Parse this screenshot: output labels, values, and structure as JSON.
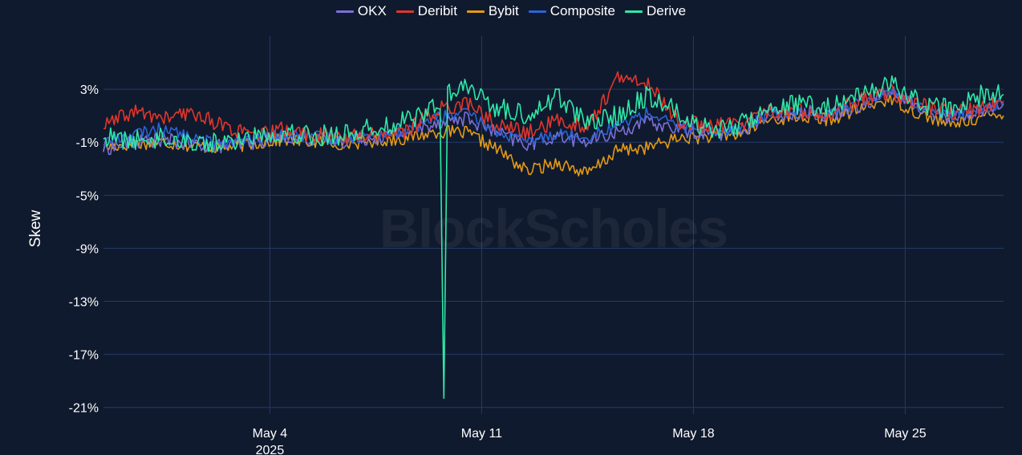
{
  "chart_data": {
    "type": "line",
    "ylabel": "Skew",
    "ylim": [
      -21.5,
      7
    ],
    "y_ticks": [
      "3%",
      "-1%",
      "-5%",
      "-9%",
      "-13%",
      "-17%",
      "-21%"
    ],
    "y_tick_values": [
      3,
      -1,
      -5,
      -9,
      -13,
      -17,
      -21
    ],
    "x_range": [
      "2025-04-28T12:00",
      "2025-05-28T06:00"
    ],
    "x_ticks": [
      {
        "date": "2025-05-04",
        "label": "May 4",
        "sublabel": "2025"
      },
      {
        "date": "2025-05-11",
        "label": "May 11",
        "sublabel": ""
      },
      {
        "date": "2025-05-18",
        "label": "May 18",
        "sublabel": ""
      },
      {
        "date": "2025-05-25",
        "label": "May 25",
        "sublabel": ""
      }
    ],
    "grid": true,
    "legend_position": "top-center",
    "watermark": "BlockScholes",
    "series": [
      {
        "name": "OKX",
        "color": "#7b6fd6",
        "x": [
          "2025-04-28T12:00",
          "2025-04-29T12:00",
          "2025-04-30T12:00",
          "2025-05-01T12:00",
          "2025-05-02T12:00",
          "2025-05-03T12:00",
          "2025-05-04T12:00",
          "2025-05-05T12:00",
          "2025-05-06T12:00",
          "2025-05-07T12:00",
          "2025-05-08T12:00",
          "2025-05-09T12:00",
          "2025-05-10T12:00",
          "2025-05-11T12:00",
          "2025-05-12T12:00",
          "2025-05-13T12:00",
          "2025-05-14T12:00",
          "2025-05-15T12:00",
          "2025-05-16T12:00",
          "2025-05-17T12:00",
          "2025-05-18T12:00",
          "2025-05-19T12:00",
          "2025-05-20T12:00",
          "2025-05-21T12:00",
          "2025-05-22T12:00",
          "2025-05-23T12:00",
          "2025-05-24T12:00",
          "2025-05-25T12:00",
          "2025-05-26T12:00",
          "2025-05-27T12:00",
          "2025-05-28T06:00"
        ],
        "values": [
          -1.5,
          -1.0,
          -0.8,
          -1.2,
          -1.3,
          -1.0,
          -0.5,
          -0.8,
          -0.9,
          -0.6,
          -0.3,
          0.5,
          0.8,
          -0.3,
          -1.2,
          -0.5,
          -1.0,
          -0.2,
          0.5,
          0.0,
          -0.4,
          -0.2,
          1.0,
          1.3,
          1.1,
          1.8,
          2.8,
          1.6,
          0.8,
          1.4,
          1.9
        ]
      },
      {
        "name": "Deribit",
        "color": "#e0362b",
        "x": [
          "2025-04-28T12:00",
          "2025-04-29T12:00",
          "2025-04-30T12:00",
          "2025-05-01T12:00",
          "2025-05-02T12:00",
          "2025-05-03T12:00",
          "2025-05-04T12:00",
          "2025-05-05T12:00",
          "2025-05-06T12:00",
          "2025-05-07T12:00",
          "2025-05-08T12:00",
          "2025-05-09T12:00",
          "2025-05-10T12:00",
          "2025-05-11T12:00",
          "2025-05-12T12:00",
          "2025-05-13T12:00",
          "2025-05-14T12:00",
          "2025-05-15T12:00",
          "2025-05-16T12:00",
          "2025-05-17T12:00",
          "2025-05-18T12:00",
          "2025-05-19T12:00",
          "2025-05-20T12:00",
          "2025-05-21T12:00",
          "2025-05-22T12:00",
          "2025-05-23T12:00",
          "2025-05-24T12:00",
          "2025-05-25T12:00",
          "2025-05-26T12:00",
          "2025-05-27T12:00",
          "2025-05-28T06:00"
        ],
        "values": [
          0.2,
          1.3,
          0.8,
          1.2,
          0.2,
          -0.6,
          0.0,
          -0.5,
          -0.6,
          -0.4,
          -0.2,
          1.4,
          2.0,
          0.3,
          -0.3,
          0.6,
          0.2,
          3.8,
          3.4,
          0.6,
          0.2,
          0.4,
          1.3,
          1.4,
          1.2,
          2.1,
          2.8,
          1.8,
          1.2,
          1.6,
          2.1
        ]
      },
      {
        "name": "Bybit",
        "color": "#e39a14",
        "x": [
          "2025-04-28T12:00",
          "2025-04-29T12:00",
          "2025-04-30T12:00",
          "2025-05-01T12:00",
          "2025-05-02T12:00",
          "2025-05-03T12:00",
          "2025-05-04T12:00",
          "2025-05-05T12:00",
          "2025-05-06T12:00",
          "2025-05-07T12:00",
          "2025-05-08T12:00",
          "2025-05-09T12:00",
          "2025-05-10T12:00",
          "2025-05-11T12:00",
          "2025-05-12T12:00",
          "2025-05-13T12:00",
          "2025-05-14T12:00",
          "2025-05-15T12:00",
          "2025-05-16T12:00",
          "2025-05-17T12:00",
          "2025-05-18T12:00",
          "2025-05-19T12:00",
          "2025-05-20T12:00",
          "2025-05-21T12:00",
          "2025-05-22T12:00",
          "2025-05-23T12:00",
          "2025-05-24T12:00",
          "2025-05-25T12:00",
          "2025-05-26T12:00",
          "2025-05-27T12:00",
          "2025-05-28T06:00"
        ],
        "values": [
          -1.4,
          -1.1,
          -1.0,
          -1.3,
          -1.4,
          -1.1,
          -0.8,
          -1.0,
          -1.1,
          -0.9,
          -0.7,
          -0.2,
          -0.3,
          -1.5,
          -3.2,
          -2.5,
          -3.4,
          -1.6,
          -1.4,
          -0.7,
          -0.6,
          -0.4,
          0.7,
          0.9,
          0.7,
          1.5,
          2.3,
          1.1,
          0.3,
          0.9,
          1.0
        ]
      },
      {
        "name": "Composite",
        "color": "#2c63d9",
        "x": [
          "2025-04-28T12:00",
          "2025-04-29T12:00",
          "2025-04-30T12:00",
          "2025-05-01T12:00",
          "2025-05-02T12:00",
          "2025-05-03T12:00",
          "2025-05-04T12:00",
          "2025-05-05T12:00",
          "2025-05-06T12:00",
          "2025-05-07T12:00",
          "2025-05-08T12:00",
          "2025-05-09T12:00",
          "2025-05-10T12:00",
          "2025-05-11T12:00",
          "2025-05-12T12:00",
          "2025-05-13T12:00",
          "2025-05-14T12:00",
          "2025-05-15T12:00",
          "2025-05-16T12:00",
          "2025-05-17T12:00",
          "2025-05-18T12:00",
          "2025-05-19T12:00",
          "2025-05-20T12:00",
          "2025-05-21T12:00",
          "2025-05-22T12:00",
          "2025-05-23T12:00",
          "2025-05-24T12:00",
          "2025-05-25T12:00",
          "2025-05-26T12:00",
          "2025-05-27T12:00",
          "2025-05-28T06:00"
        ],
        "values": [
          -1.0,
          -0.4,
          0.1,
          -0.8,
          -1.0,
          -0.8,
          -0.4,
          -0.6,
          -0.7,
          -0.5,
          -0.2,
          0.9,
          1.2,
          -0.2,
          -1.0,
          -0.3,
          -0.6,
          0.3,
          1.2,
          0.2,
          -0.2,
          0.0,
          1.1,
          1.4,
          1.2,
          2.0,
          2.9,
          1.7,
          1.0,
          1.5,
          2.0
        ]
      },
      {
        "name": "Derive",
        "color": "#2ee8a8",
        "x": [
          "2025-04-28T12:00",
          "2025-04-29T12:00",
          "2025-04-30T12:00",
          "2025-05-01T12:00",
          "2025-05-02T12:00",
          "2025-05-03T12:00",
          "2025-05-04T12:00",
          "2025-05-05T12:00",
          "2025-05-06T12:00",
          "2025-05-07T12:00",
          "2025-05-08T12:00",
          "2025-05-09T12:00",
          "2025-05-09T15:00",
          "2025-05-09T18:00",
          "2025-05-09T21:00",
          "2025-05-10T12:00",
          "2025-05-11T12:00",
          "2025-05-12T12:00",
          "2025-05-13T12:00",
          "2025-05-14T12:00",
          "2025-05-15T12:00",
          "2025-05-16T12:00",
          "2025-05-17T12:00",
          "2025-05-18T12:00",
          "2025-05-19T12:00",
          "2025-05-20T12:00",
          "2025-05-21T12:00",
          "2025-05-22T12:00",
          "2025-05-23T12:00",
          "2025-05-24T12:00",
          "2025-05-25T12:00",
          "2025-05-26T12:00",
          "2025-05-27T12:00",
          "2025-05-28T06:00"
        ],
        "values": [
          -0.6,
          -0.9,
          -0.6,
          -1.0,
          -1.1,
          -0.5,
          -0.2,
          -0.5,
          -0.4,
          0.1,
          0.6,
          1.7,
          1.5,
          -20.3,
          2.6,
          3.1,
          1.6,
          1.0,
          2.5,
          0.4,
          1.0,
          2.6,
          1.2,
          0.0,
          0.2,
          1.7,
          1.9,
          1.6,
          2.4,
          3.6,
          1.9,
          1.4,
          2.5,
          2.6
        ]
      }
    ]
  }
}
